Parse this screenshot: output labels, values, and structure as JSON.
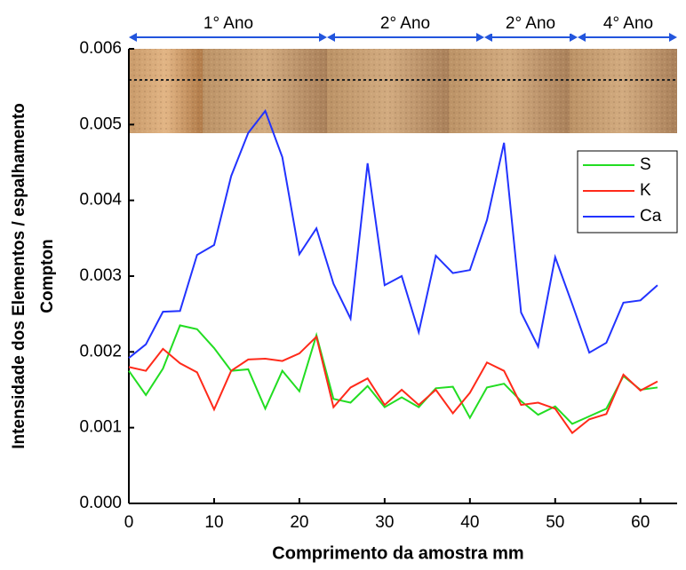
{
  "chart_data": {
    "type": "line",
    "x_label": "Comprimento da amostra mm",
    "y_label": [
      "Intensidade dos Elementos / espalhamento",
      "Compton"
    ],
    "annotations": [
      "1° Ano",
      "2° Ano",
      "2° Ano",
      "4° Ano"
    ],
    "x": [
      0,
      2,
      4,
      6,
      8,
      10,
      12,
      14,
      16,
      18,
      20,
      22,
      24,
      26,
      28,
      30,
      32,
      34,
      36,
      38,
      40,
      42,
      44,
      46,
      48,
      50,
      52,
      54,
      56,
      58,
      60,
      62
    ],
    "series": [
      {
        "name": "S",
        "color": "#22dd22",
        "values": [
          0.00175,
          0.00143,
          0.00178,
          0.00235,
          0.0023,
          0.00205,
          0.00175,
          0.00177,
          0.00125,
          0.00175,
          0.00148,
          0.00222,
          0.00138,
          0.00133,
          0.00155,
          0.00127,
          0.0014,
          0.00127,
          0.00152,
          0.00154,
          0.00113,
          0.00153,
          0.00158,
          0.00135,
          0.00117,
          0.00128,
          0.00105,
          0.00115,
          0.00125,
          0.00168,
          0.0015,
          0.00153
        ]
      },
      {
        "name": "K",
        "color": "#ff2a1a",
        "values": [
          0.0018,
          0.00175,
          0.00204,
          0.00185,
          0.00173,
          0.00124,
          0.00175,
          0.0019,
          0.00191,
          0.00188,
          0.00198,
          0.0022,
          0.00127,
          0.00153,
          0.00165,
          0.0013,
          0.0015,
          0.0013,
          0.0015,
          0.00119,
          0.00146,
          0.00186,
          0.00175,
          0.0013,
          0.00133,
          0.00125,
          0.00093,
          0.00111,
          0.00118,
          0.0017,
          0.00149,
          0.00161
        ]
      },
      {
        "name": "Ca",
        "color": "#2233ff",
        "values": [
          0.00192,
          0.0021,
          0.00253,
          0.00254,
          0.00328,
          0.00341,
          0.00432,
          0.00489,
          0.00518,
          0.00457,
          0.00329,
          0.00363,
          0.0029,
          0.00244,
          0.00449,
          0.00288,
          0.003,
          0.00226,
          0.00327,
          0.00304,
          0.00308,
          0.00374,
          0.00476,
          0.00252,
          0.00207,
          0.00325,
          0.00263,
          0.00199,
          0.00212,
          0.00265,
          0.00268,
          0.00288
        ]
      }
    ],
    "xlim": [
      0,
      64.3
    ],
    "xticks": [
      0,
      10,
      20,
      30,
      40,
      50,
      60
    ],
    "ylim": [
      0,
      0.006
    ],
    "yticks": [
      {
        "value": 0,
        "label": "0.000"
      },
      {
        "value": 0.001,
        "label": "0.001"
      },
      {
        "value": 0.002,
        "label": "0.002"
      },
      {
        "value": 0.003,
        "label": "0.003"
      },
      {
        "value": 0.004,
        "label": "0.004"
      },
      {
        "value": 0.005,
        "label": "0.005"
      },
      {
        "value": 0.006,
        "label": "0.006"
      }
    ],
    "legend": "upper right"
  }
}
